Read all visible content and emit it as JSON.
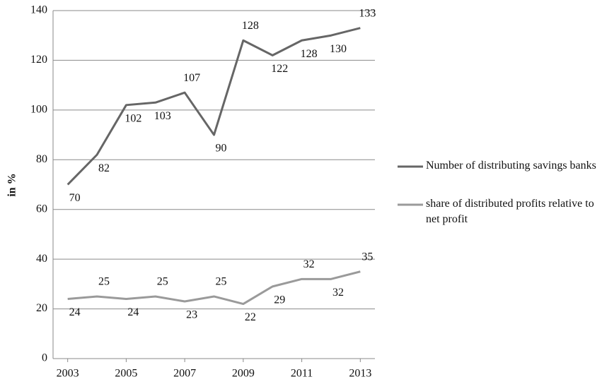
{
  "chart_data": {
    "type": "line",
    "y_label": "in %",
    "x": [
      2003,
      2004,
      2005,
      2006,
      2007,
      2008,
      2009,
      2010,
      2011,
      2012,
      2013
    ],
    "xlim": [
      2002.5,
      2013.5
    ],
    "xticks": [
      2003,
      2005,
      2007,
      2009,
      2011,
      2013
    ],
    "ylim": [
      0,
      140
    ],
    "yticks": [
      0,
      20,
      40,
      60,
      80,
      100,
      120,
      140
    ],
    "grid": true,
    "legend": "right",
    "series": [
      {
        "name": "Number of distributing savings banks",
        "color": "#666666",
        "values": [
          70,
          82,
          102,
          103,
          107,
          90,
          128,
          122,
          128,
          130,
          133
        ]
      },
      {
        "name": "share of distributed profits relative to net profit",
        "color": "#9a9a9a",
        "values": [
          24,
          25,
          24,
          25,
          23,
          25,
          22,
          29,
          32,
          32,
          35
        ]
      }
    ]
  }
}
